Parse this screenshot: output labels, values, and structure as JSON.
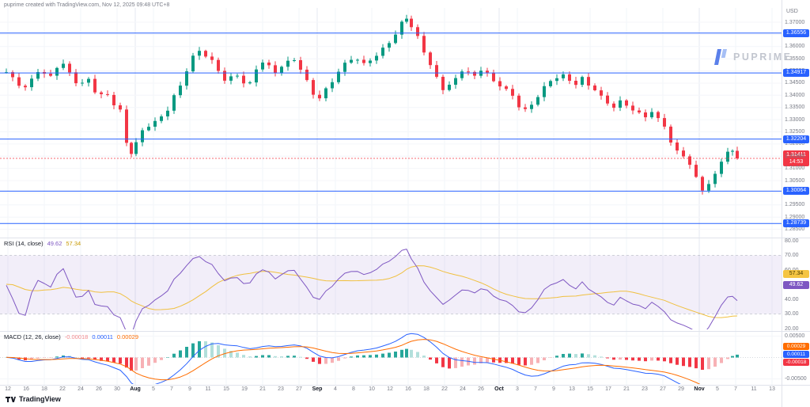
{
  "header": {
    "title": "puprime created with TradingView.com, Nov 12, 2025 09:48 UTC+8"
  },
  "watermark": {
    "brand": "PUPRIME"
  },
  "footer": {
    "brand": "TradingView"
  },
  "price_axis": {
    "unit": "USD",
    "ticks": [
      "1.37000",
      "1.36500",
      "1.36000",
      "1.35500",
      "1.35000",
      "1.34500",
      "1.34000",
      "1.33500",
      "1.33000",
      "1.32500",
      "1.32000",
      "1.31500",
      "1.31000",
      "1.30500",
      "1.30000",
      "1.29500",
      "1.29000",
      "1.28500"
    ],
    "levels": [
      "1.36556",
      "1.34917",
      "1.32204",
      "1.30064",
      "1.28739"
    ],
    "last_price": {
      "label": "1.31411",
      "countdown": "14:53"
    }
  },
  "time_axis": {
    "labels": [
      "12",
      "16",
      "18",
      "22",
      "24",
      "26",
      "30",
      "Aug",
      "5",
      "7",
      "9",
      "11",
      "15",
      "19",
      "21",
      "23",
      "27",
      "Sep",
      "4",
      "8",
      "10",
      "12",
      "16",
      "18",
      "22",
      "24",
      "26",
      "Oct",
      "3",
      "7",
      "9",
      "13",
      "15",
      "17",
      "21",
      "23",
      "27",
      "29",
      "Nov",
      "5",
      "7",
      "11",
      "13"
    ]
  },
  "rsi_panel": {
    "title": "RSI (14, close)",
    "rsi_value": "49.62",
    "ma_value": "57.34",
    "ticks": [
      "80.00",
      "70.00",
      "60.00",
      "50.00",
      "40.00",
      "30.00",
      "20.00"
    ],
    "overbought": 70,
    "oversold": 30
  },
  "macd_panel": {
    "title": "MACD (12, 26, close)",
    "hist_value": "-0.00018",
    "macd_value": "0.00011",
    "signal_value": "0.00029",
    "ticks": [
      "0.00500",
      "-0.00500"
    ]
  },
  "colors": {
    "accent": "#2962ff",
    "up": "#089981",
    "down": "#f23645",
    "rsi": "#7e57c2",
    "rsi_ma": "#f0c040",
    "macd_line": "#2962ff",
    "signal_line": "#ff6d00",
    "hist_up": "#26a69a",
    "hist_up_weak": "#b2dfdb",
    "hist_down": "#f23645",
    "hist_down_weak": "#f7b1b5",
    "grid": "#f2f4f8",
    "grid_month": "#e6e9f0"
  },
  "chart_data": {
    "type": "candlestick",
    "pair_unit": "USD",
    "timeframe": "daily",
    "price_axis_range": [
      1.285,
      1.375
    ],
    "last_price_value": 1.31411,
    "horizontal_levels": [
      1.36556,
      1.34917,
      1.32204,
      1.30064,
      1.28739
    ],
    "indicators": [
      {
        "type": "RSI",
        "params": "14, close",
        "value": 49.62,
        "ma_value": 57.34,
        "overbought": 70,
        "oversold": 30,
        "axis_range": [
          20,
          80
        ]
      },
      {
        "type": "MACD",
        "params": "12, 26, close",
        "histogram": -0.00018,
        "macd": 0.00011,
        "signal": 0.00029,
        "axis_range": [
          -0.005,
          0.005
        ]
      }
    ],
    "price_anchors": [
      [
        8,
        1.3495
      ],
      [
        16,
        1.3468
      ],
      [
        24,
        1.3442
      ],
      [
        32,
        1.343
      ],
      [
        40,
        1.3462
      ],
      [
        48,
        1.35
      ],
      [
        56,
        1.3488
      ],
      [
        64,
        1.3478
      ],
      [
        72,
        1.352
      ],
      [
        80,
        1.353
      ],
      [
        88,
        1.3492
      ],
      [
        96,
        1.3455
      ],
      [
        104,
        1.3448
      ],
      [
        112,
        1.3462
      ],
      [
        120,
        1.3415
      ],
      [
        128,
        1.34
      ],
      [
        136,
        1.3398
      ],
      [
        144,
        1.3365
      ],
      [
        152,
        1.334
      ],
      [
        160,
        1.3205
      ],
      [
        166,
        1.3167
      ],
      [
        172,
        1.3205
      ],
      [
        180,
        1.3255
      ],
      [
        188,
        1.3275
      ],
      [
        196,
        1.3288
      ],
      [
        204,
        1.331
      ],
      [
        212,
        1.334
      ],
      [
        220,
        1.3395
      ],
      [
        228,
        1.344
      ],
      [
        236,
        1.3505
      ],
      [
        244,
        1.356
      ],
      [
        252,
        1.3585
      ],
      [
        260,
        1.3565
      ],
      [
        268,
        1.354
      ],
      [
        276,
        1.35
      ],
      [
        284,
        1.3462
      ],
      [
        292,
        1.347
      ],
      [
        300,
        1.348
      ],
      [
        308,
        1.3452
      ],
      [
        316,
        1.3448
      ],
      [
        324,
        1.351
      ],
      [
        332,
        1.354
      ],
      [
        340,
        1.352
      ],
      [
        348,
        1.3495
      ],
      [
        356,
        1.352
      ],
      [
        364,
        1.3535
      ],
      [
        372,
        1.3545
      ],
      [
        380,
        1.3505
      ],
      [
        388,
        1.3455
      ],
      [
        396,
        1.3405
      ],
      [
        404,
        1.339
      ],
      [
        412,
        1.3425
      ],
      [
        420,
        1.346
      ],
      [
        428,
        1.35
      ],
      [
        436,
        1.353
      ],
      [
        444,
        1.355
      ],
      [
        452,
        1.3545
      ],
      [
        460,
        1.3525
      ],
      [
        468,
        1.3545
      ],
      [
        476,
        1.356
      ],
      [
        484,
        1.359
      ],
      [
        492,
        1.362
      ],
      [
        500,
        1.365
      ],
      [
        508,
        1.37
      ],
      [
        514,
        1.3722
      ],
      [
        520,
        1.368
      ],
      [
        528,
        1.364
      ],
      [
        536,
        1.358
      ],
      [
        544,
        1.352
      ],
      [
        552,
        1.347
      ],
      [
        560,
        1.3425
      ],
      [
        568,
        1.344
      ],
      [
        576,
        1.3468
      ],
      [
        584,
        1.3505
      ],
      [
        592,
        1.3495
      ],
      [
        600,
        1.348
      ],
      [
        608,
        1.3508
      ],
      [
        616,
        1.349
      ],
      [
        624,
        1.3455
      ],
      [
        632,
        1.344
      ],
      [
        640,
        1.342
      ],
      [
        648,
        1.3395
      ],
      [
        656,
        1.3355
      ],
      [
        664,
        1.334
      ],
      [
        672,
        1.3362
      ],
      [
        680,
        1.34
      ],
      [
        688,
        1.3435
      ],
      [
        696,
        1.346
      ],
      [
        704,
        1.3475
      ],
      [
        712,
        1.348
      ],
      [
        720,
        1.3458
      ],
      [
        728,
        1.3445
      ],
      [
        736,
        1.3468
      ],
      [
        744,
        1.344
      ],
      [
        752,
        1.3425
      ],
      [
        760,
        1.3395
      ],
      [
        768,
        1.337
      ],
      [
        776,
        1.3355
      ],
      [
        784,
        1.3375
      ],
      [
        792,
        1.336
      ],
      [
        800,
        1.334
      ],
      [
        808,
        1.3322
      ],
      [
        816,
        1.331
      ],
      [
        824,
        1.3332
      ],
      [
        832,
        1.33
      ],
      [
        840,
        1.3275
      ],
      [
        848,
        1.321
      ],
      [
        856,
        1.317
      ],
      [
        864,
        1.3155
      ],
      [
        872,
        1.3118
      ],
      [
        880,
        1.306
      ],
      [
        888,
        1.3012
      ],
      [
        896,
        1.3035
      ],
      [
        904,
        1.307
      ],
      [
        912,
        1.313
      ],
      [
        920,
        1.3168
      ],
      [
        926,
        1.3172
      ],
      [
        932,
        1.31411
      ]
    ]
  }
}
